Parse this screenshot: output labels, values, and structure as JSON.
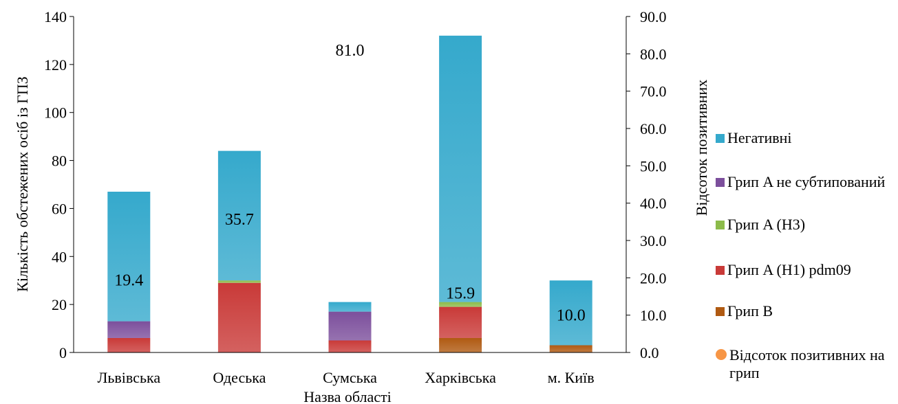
{
  "chart_data": {
    "type": "bar",
    "stacked": true,
    "title": "",
    "xlabel": "Назва області",
    "ylabel": "Кількість обстежених осіб із ГПЗ",
    "y2label": "Відсоток позитивних",
    "ylim": [
      0,
      140
    ],
    "yticks": [
      "0",
      "20",
      "40",
      "60",
      "80",
      "100",
      "120",
      "140"
    ],
    "y2lim": [
      0,
      90
    ],
    "y2ticks": [
      "0.0",
      "10.0",
      "20.0",
      "30.0",
      "40.0",
      "50.0",
      "60.0",
      "70.0",
      "80.0",
      "90.0"
    ],
    "categories": [
      "Львівська",
      "Одеська",
      "Сумська",
      "Харківська",
      "м. Київ"
    ],
    "series": [
      {
        "name": "Грип B",
        "color": "#b05a12",
        "values": [
          0,
          0,
          0,
          6,
          3
        ]
      },
      {
        "name": "Грип A (H1) pdm09",
        "color": "#c93a38",
        "values": [
          6,
          29,
          5,
          13,
          0
        ]
      },
      {
        "name": "Грип A (H3)",
        "color": "#8cbb4a",
        "values": [
          0,
          1,
          0,
          2,
          0
        ]
      },
      {
        "name": "Грип A не субтипований",
        "color": "#7c4f9c",
        "values": [
          7,
          0,
          12,
          0,
          0
        ]
      },
      {
        "name": "Негативні",
        "color": "#35a9cc",
        "values": [
          54,
          54,
          4,
          111,
          27
        ]
      }
    ],
    "line_series": {
      "name": "Відсоток позитивних на грип",
      "color": "#f79646",
      "axis": "secondary",
      "values": [
        19.4,
        35.7,
        81.0,
        15.9,
        10.0
      ],
      "labels": [
        "19.4",
        "35.7",
        "81.0",
        "15.9",
        "10.0"
      ]
    },
    "legend_position": "right",
    "grid": false
  }
}
